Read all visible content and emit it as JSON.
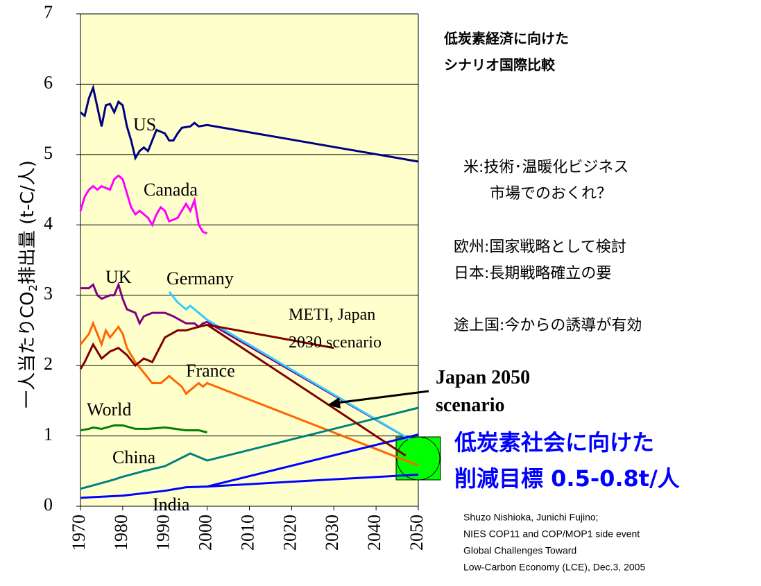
{
  "chart_data": {
    "type": "line",
    "title": [
      "低炭素経済に向けた",
      "シナリオ国際比較"
    ],
    "ylabel": [
      "一人当たりCO",
      "2",
      "排出量 (t-C/人)"
    ],
    "xlim": [
      1970,
      2050
    ],
    "xticks": [
      1970,
      1980,
      1990,
      2000,
      2010,
      2020,
      2030,
      2040,
      2050
    ],
    "ylim": [
      0,
      7
    ],
    "yticks": [
      0,
      1,
      2,
      3,
      4,
      5,
      6,
      7
    ],
    "grid": true,
    "series": [
      {
        "name": "US",
        "color": "#000080",
        "x": [
          1970,
          1971,
          1972,
          1973,
          1975,
          1976,
          1977,
          1978,
          1979,
          1980,
          1981,
          1982,
          1983,
          1984,
          1985,
          1986,
          1987,
          1988,
          1990,
          1991,
          1992,
          1993,
          1994,
          1996,
          1997,
          1998,
          2000,
          2050
        ],
        "values": [
          5.6,
          5.55,
          5.8,
          5.95,
          5.4,
          5.7,
          5.72,
          5.6,
          5.75,
          5.7,
          5.4,
          5.2,
          4.95,
          5.05,
          5.1,
          5.05,
          5.2,
          5.35,
          5.3,
          5.2,
          5.2,
          5.3,
          5.38,
          5.4,
          5.45,
          5.4,
          5.42,
          4.9
        ]
      },
      {
        "name": "Canada",
        "color": "#ff00ff",
        "x": [
          1970,
          1971,
          1972,
          1973,
          1974,
          1975,
          1977,
          1978,
          1979,
          1980,
          1981,
          1982,
          1983,
          1984,
          1986,
          1987,
          1988,
          1989,
          1990,
          1991,
          1993,
          1995,
          1996,
          1997,
          1998,
          1999,
          2000
        ],
        "values": [
          4.2,
          4.4,
          4.5,
          4.55,
          4.5,
          4.55,
          4.5,
          4.65,
          4.7,
          4.65,
          4.45,
          4.25,
          4.15,
          4.2,
          4.1,
          4.0,
          4.15,
          4.25,
          4.2,
          4.05,
          4.1,
          4.3,
          4.2,
          4.35,
          4.0,
          3.9,
          3.88
        ]
      },
      {
        "name": "UK",
        "color": "#800080",
        "x": [
          1970,
          1972,
          1973,
          1974,
          1975,
          1977,
          1978,
          1979,
          1980,
          1981,
          1983,
          1984,
          1985,
          1987,
          1990,
          1992,
          1995,
          1997,
          1998,
          1999,
          2000,
          2048
        ],
        "values": [
          3.1,
          3.1,
          3.15,
          3.0,
          2.95,
          3.0,
          3.0,
          3.15,
          2.95,
          2.8,
          2.75,
          2.6,
          2.7,
          2.75,
          2.75,
          2.7,
          2.6,
          2.6,
          2.55,
          2.6,
          2.62,
          0.95
        ]
      },
      {
        "name": "Germany",
        "color": "#33ccff",
        "x": [
          1991,
          1993,
          1995,
          1996,
          1998,
          2000,
          2048
        ],
        "values": [
          3.05,
          2.9,
          2.8,
          2.85,
          2.75,
          2.65,
          0.95
        ]
      },
      {
        "name": "France",
        "color": "#ff6600",
        "x": [
          1970,
          1972,
          1973,
          1975,
          1976,
          1977,
          1979,
          1980,
          1981,
          1983,
          1985,
          1987,
          1989,
          1990,
          1991,
          1993,
          1994,
          1995,
          1997,
          1998,
          1999,
          2000,
          2050
        ],
        "values": [
          2.3,
          2.45,
          2.6,
          2.3,
          2.5,
          2.4,
          2.55,
          2.45,
          2.25,
          2.05,
          1.9,
          1.75,
          1.75,
          1.8,
          1.85,
          1.75,
          1.7,
          1.6,
          1.7,
          1.75,
          1.7,
          1.75,
          0.58
        ]
      },
      {
        "name": "World",
        "color": "#008000",
        "x": [
          1970,
          1972,
          1973,
          1975,
          1978,
          1980,
          1983,
          1986,
          1990,
          1995,
          1998,
          2000
        ],
        "values": [
          1.08,
          1.1,
          1.12,
          1.1,
          1.15,
          1.15,
          1.1,
          1.1,
          1.12,
          1.08,
          1.08,
          1.05
        ]
      },
      {
        "name": "China",
        "color": "#008080",
        "x": [
          1970,
          1972,
          1975,
          1978,
          1980,
          1985,
          1990,
          1995,
          1996,
          1998,
          2000,
          2050
        ],
        "values": [
          0.25,
          0.28,
          0.33,
          0.38,
          0.42,
          0.5,
          0.57,
          0.72,
          0.75,
          0.7,
          0.65,
          1.4
        ]
      },
      {
        "name": "India",
        "color": "#0000ff",
        "x": [
          1970,
          1980,
          1990,
          1995,
          2000,
          2050
        ],
        "values": [
          0.12,
          0.15,
          0.22,
          0.27,
          0.28,
          0.45
        ]
      },
      {
        "color": "#0000ff",
        "x": [
          2000,
          2050
        ],
        "values": [
          0.28,
          1.02
        ]
      },
      {
        "color": "#800000",
        "x": [
          1970,
          1971,
          1973,
          1975,
          1977,
          1979,
          1981,
          1983,
          1985,
          1987,
          1990,
          1993,
          1995,
          1998,
          2000
        ],
        "values": [
          1.95,
          2.05,
          2.3,
          2.1,
          2.2,
          2.25,
          2.15,
          2.0,
          2.1,
          2.05,
          2.4,
          2.5,
          2.5,
          2.55,
          2.58
        ]
      },
      {
        "name": "METI, Japan 2030 scenario",
        "color": "#800000",
        "x": [
          2000,
          2030
        ],
        "values": [
          2.58,
          2.25
        ]
      },
      {
        "name": "Japan 2050 scenario",
        "color": "#800000",
        "x": [
          2000,
          2047
        ],
        "values": [
          2.58,
          0.72
        ]
      }
    ],
    "target": [
      "低炭素社会に向けた",
      "削減目標 0.5-0.8t/人"
    ],
    "notes": [
      "米:技術･温暖化ビジネス",
      "市場でのおくれ？",
      "欧州:国家戦略として検討",
      "日本:長期戦略確立の要",
      "途上国:今からの誘導が有効"
    ],
    "source": [
      "Shuzo Nishioka, Junichi Fujino;",
      "NIES COP11 and COP/MOP1 side event",
      "Global Challenges Toward",
      "Low-Carbon Economy (LCE), Dec.3, 2005"
    ]
  }
}
